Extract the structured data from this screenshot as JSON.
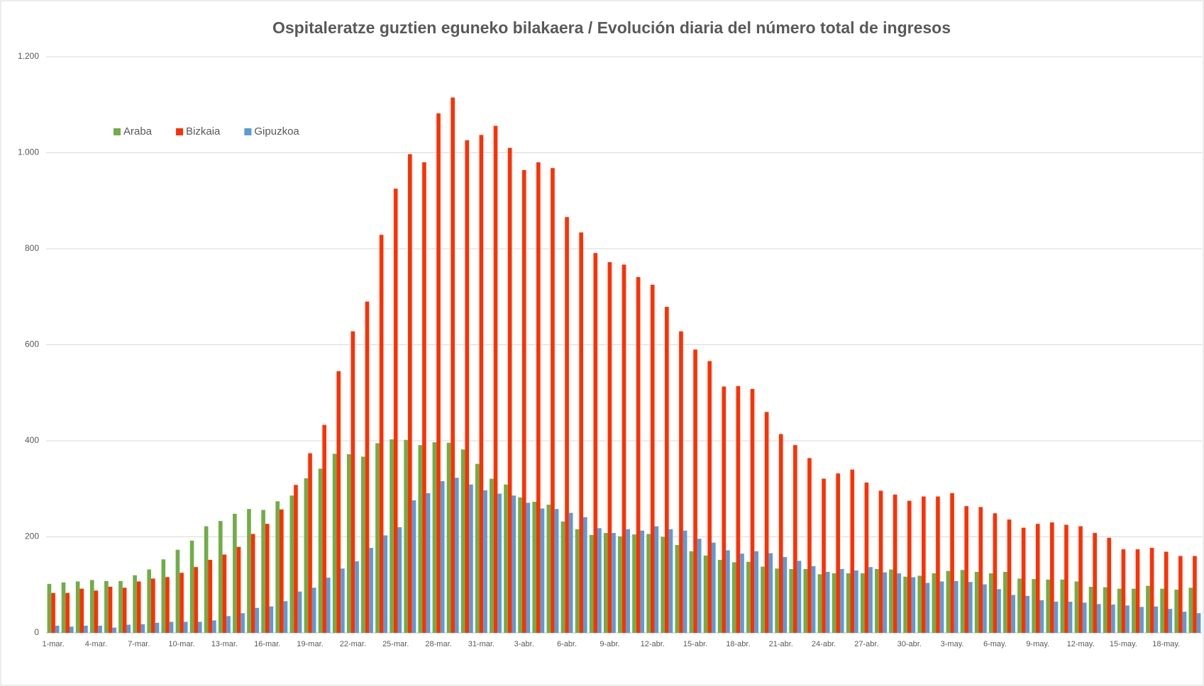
{
  "chart_data": {
    "type": "bar",
    "title": "Ospitaleratze guztien eguneko bilakaera  / Evolución diaria del número total de ingresos",
    "categories": [
      "1-mar.",
      null,
      null,
      "4-mar.",
      null,
      null,
      "7-mar.",
      null,
      null,
      "10-mar.",
      null,
      null,
      "13-mar.",
      null,
      null,
      "16-mar.",
      null,
      null,
      "19-mar.",
      null,
      null,
      "22-mar.",
      null,
      null,
      "25-mar.",
      null,
      null,
      "28-mar.",
      null,
      null,
      "31-mar.",
      null,
      null,
      "3-abr.",
      null,
      null,
      "6-abr.",
      null,
      null,
      "9-abr.",
      null,
      null,
      "12-abr.",
      null,
      null,
      "15-abr.",
      null,
      null,
      "18-abr.",
      null,
      null,
      "21-abr.",
      null,
      null,
      "24-abr.",
      null,
      null,
      "27-abr.",
      null,
      null,
      "30-abr.",
      null,
      null,
      "3-may.",
      null,
      null,
      "6-may.",
      null,
      null,
      "9-may.",
      null,
      null,
      "12-may.",
      null,
      null,
      "15-may.",
      null,
      null,
      "18-may.",
      null,
      null
    ],
    "series": [
      {
        "name": "Araba",
        "color": "#70ad47",
        "values": [
          102,
          105,
          107,
          110,
          108,
          108,
          120,
          132,
          153,
          173,
          192,
          222,
          233,
          248,
          258,
          256,
          274,
          286,
          322,
          342,
          373,
          372,
          367,
          395,
          403,
          402,
          391,
          397,
          396,
          382,
          352,
          321,
          309,
          282,
          273,
          267,
          232,
          216,
          204,
          208,
          201,
          205,
          206,
          200,
          183,
          170,
          161,
          152,
          147,
          148,
          138,
          134,
          133,
          133,
          122,
          124,
          124,
          124,
          133,
          132,
          117,
          119,
          124,
          129,
          131,
          127,
          124,
          127,
          113,
          112,
          111,
          111,
          107,
          96,
          95,
          92,
          92,
          98,
          92,
          90,
          94
        ]
      },
      {
        "name": "Bizkaia",
        "color": "#ff3000",
        "values": [
          83,
          83,
          92,
          88,
          96,
          94,
          107,
          113,
          116,
          125,
          137,
          152,
          163,
          179,
          206,
          227,
          257,
          308,
          374,
          433,
          545,
          628,
          690,
          829,
          925,
          997,
          980,
          1082,
          1115,
          1026,
          1037,
          1056,
          1010,
          964,
          980,
          968,
          866,
          834,
          791,
          772,
          767,
          741,
          725,
          679,
          628,
          590,
          566,
          513,
          514,
          508,
          460,
          414,
          391,
          364,
          321,
          332,
          340,
          313,
          296,
          288,
          275,
          284,
          284,
          291,
          264,
          262,
          249,
          236,
          219,
          227,
          230,
          225,
          222,
          208,
          198,
          174,
          174,
          177,
          169,
          160,
          160
        ]
      },
      {
        "name": "Gipuzkoa",
        "color": "#5b9bd5",
        "values": [
          15,
          13,
          15,
          15,
          11,
          17,
          18,
          21,
          23,
          23,
          23,
          26,
          35,
          41,
          52,
          55,
          66,
          86,
          94,
          115,
          134,
          149,
          177,
          203,
          220,
          276,
          291,
          316,
          323,
          309,
          297,
          290,
          286,
          271,
          259,
          258,
          250,
          241,
          218,
          208,
          216,
          213,
          222,
          216,
          213,
          196,
          188,
          172,
          165,
          170,
          166,
          158,
          150,
          139,
          127,
          133,
          130,
          137,
          126,
          124,
          116,
          104,
          107,
          108,
          106,
          101,
          91,
          79,
          77,
          68,
          65,
          65,
          63,
          60,
          59,
          57,
          54,
          55,
          50,
          44,
          41
        ]
      }
    ],
    "ylim": [
      0,
      1200
    ],
    "yticks": [
      0,
      200,
      400,
      600,
      800,
      {
        "value": 1000,
        "label": "1.000"
      },
      {
        "value": 1200,
        "label": "1.200"
      }
    ],
    "grid": true,
    "legend": "top-left"
  }
}
